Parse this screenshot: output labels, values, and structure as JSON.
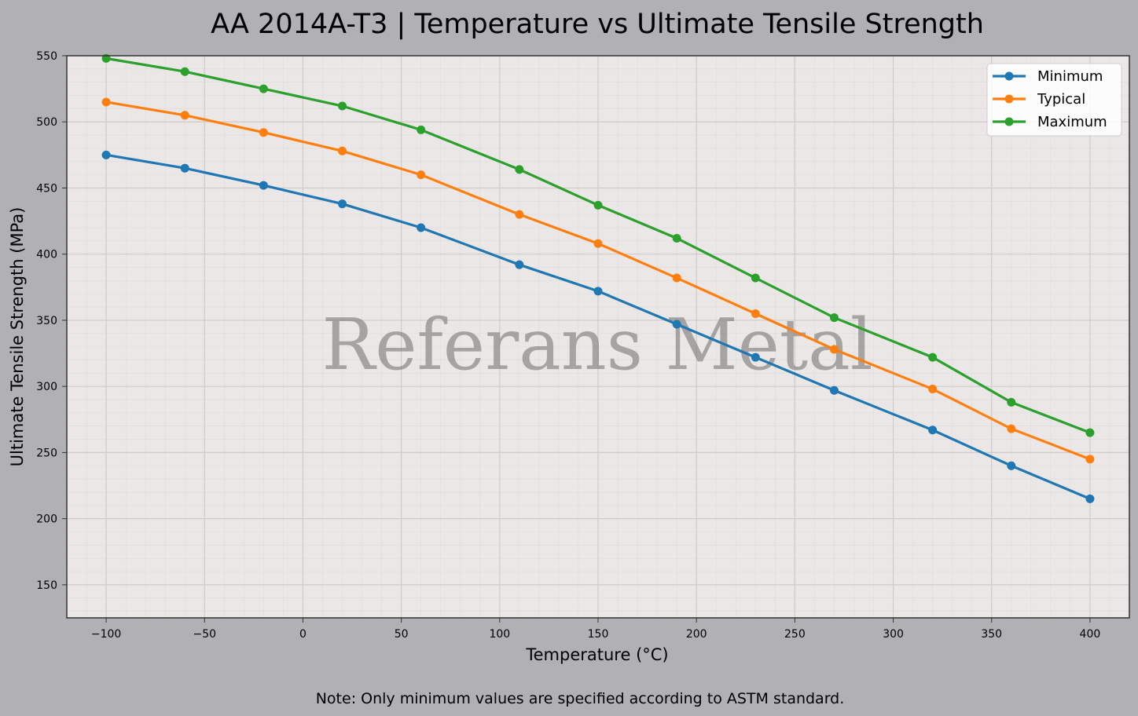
{
  "chart_data": {
    "type": "line",
    "title": "AA 2014A-T3 | Temperature vs Ultimate Tensile Strength",
    "xlabel": "Temperature (°C)",
    "ylabel": "Ultimate Tensile Strength (MPa)",
    "xlim": [
      -120,
      420
    ],
    "ylim": [
      125,
      550
    ],
    "xticks": [
      -100,
      -50,
      0,
      50,
      100,
      150,
      200,
      250,
      300,
      350,
      400
    ],
    "xtick_labels": [
      "−100",
      "−50",
      "0",
      "50",
      "100",
      "150",
      "200",
      "250",
      "300",
      "350",
      "400"
    ],
    "yticks": [
      150,
      200,
      250,
      300,
      350,
      400,
      450,
      500,
      550
    ],
    "grid": true,
    "legend_position": "top-right",
    "x": [
      -100,
      -60,
      -20,
      20,
      60,
      110,
      150,
      190,
      230,
      270,
      320,
      360,
      400
    ],
    "series": [
      {
        "name": "Minimum",
        "color": "#1f77b4",
        "values": [
          475,
          465,
          452,
          438,
          420,
          392,
          372,
          347,
          322,
          297,
          267,
          240,
          215
        ]
      },
      {
        "name": "Typical",
        "color": "#ff7f0e",
        "values": [
          515,
          505,
          492,
          478,
          460,
          430,
          408,
          382,
          355,
          328,
          298,
          268,
          245
        ]
      },
      {
        "name": "Maximum",
        "color": "#2ca02c",
        "values": [
          548,
          538,
          525,
          512,
          494,
          464,
          437,
          412,
          382,
          352,
          322,
          288,
          265
        ]
      }
    ],
    "watermark": "Referans Metal",
    "note": "Note: Only minimum values are specified according to ASTM standard."
  }
}
